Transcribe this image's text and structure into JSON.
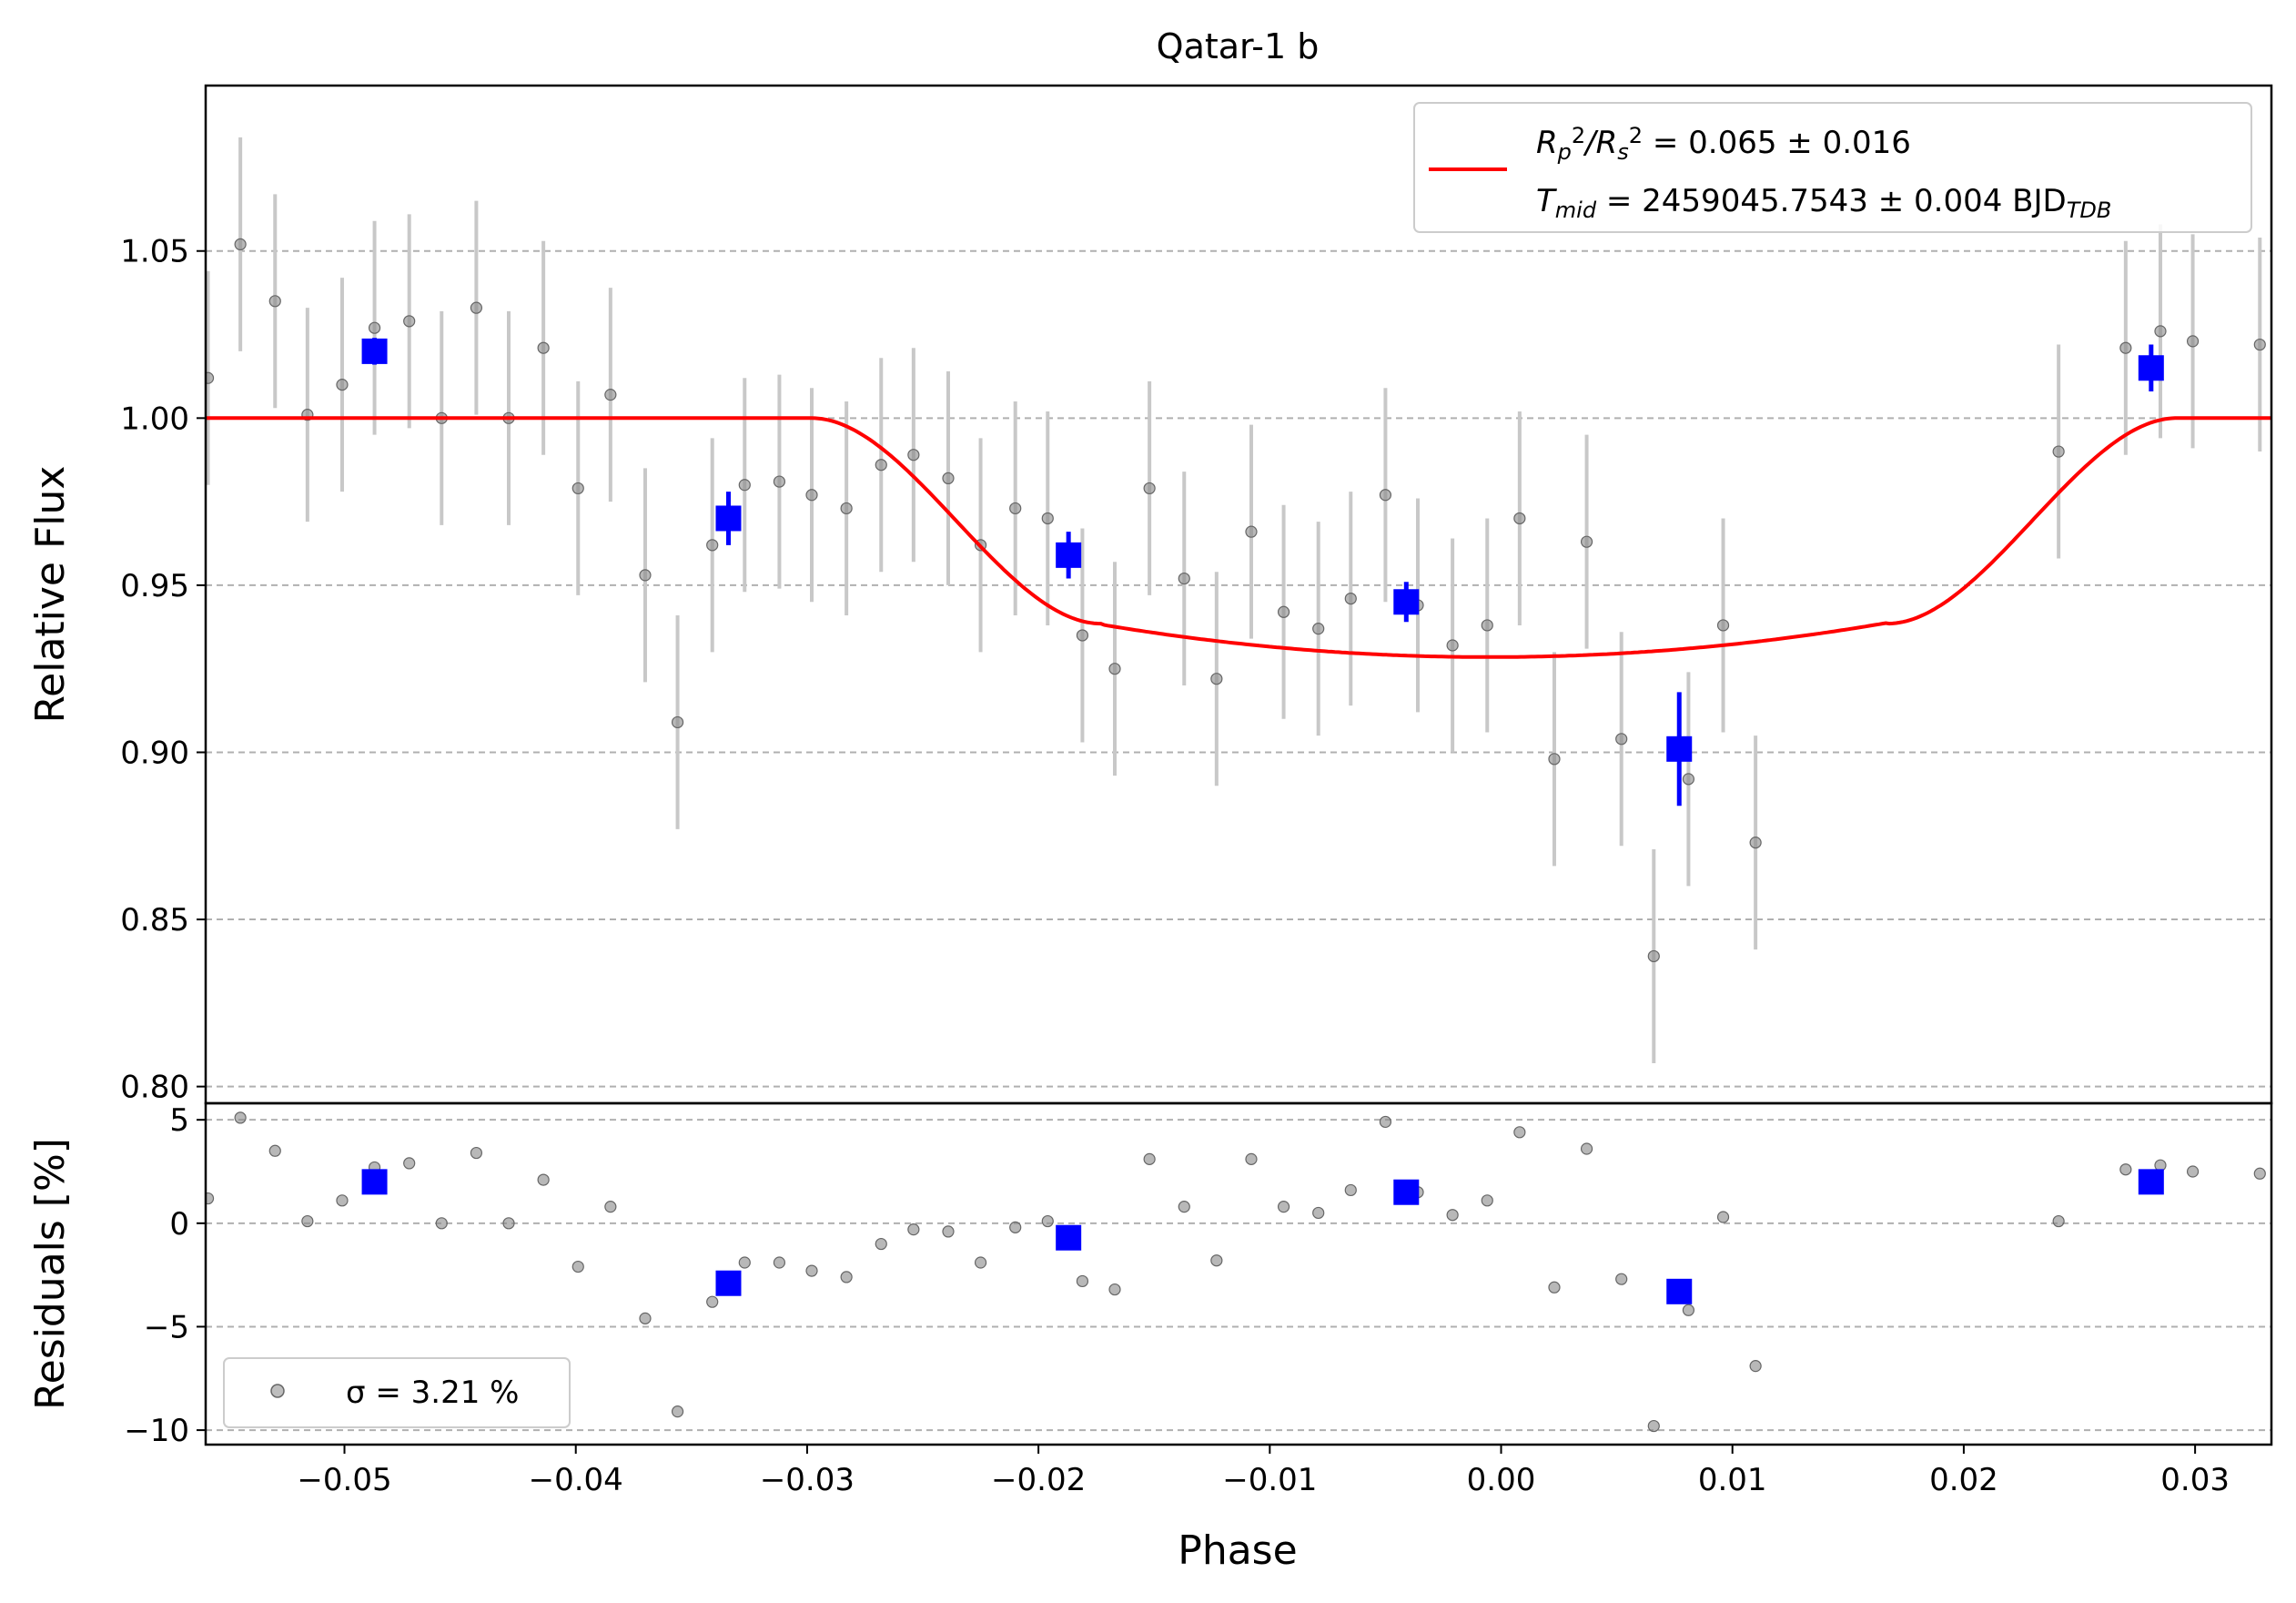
{
  "chart_data": [
    {
      "type": "scatter",
      "panel": "main",
      "title": "Qatar-1 b",
      "xlabel": "",
      "ylabel": "Relative Flux",
      "xlim": [
        -0.056,
        0.0333
      ],
      "ylim": [
        0.795,
        1.0995
      ],
      "grid": "horizontal dashed",
      "y_ticks": [
        0.8,
        0.85,
        0.9,
        0.95,
        1.0,
        1.05
      ],
      "y_tick_labels": [
        "0.80",
        "0.85",
        "0.90",
        "0.95",
        "1.00",
        "1.05"
      ],
      "legend": {
        "placement": "top-right",
        "line1_parts": [
          {
            "t": "R",
            "s": "n"
          },
          {
            "t": "p",
            "s": "sub"
          },
          {
            "t": "2",
            "s": "sup"
          },
          {
            "t": "/R",
            "s": "n"
          },
          {
            "t": "s",
            "s": "sub"
          },
          {
            "t": "2",
            "s": "sup"
          },
          {
            "t": " = 0.065 ± 0.016",
            "s": "n"
          }
        ],
        "line2_parts": [
          {
            "t": "T",
            "s": "n"
          },
          {
            "t": "mid",
            "s": "sub"
          },
          {
            "t": " = 2459045.7543 ± 0.004 BJD",
            "s": "n"
          },
          {
            "t": "TDB",
            "s": "sub"
          }
        ]
      },
      "series": [
        {
          "kind": "raw",
          "color": "#888888",
          "errcolor": "#c8c8c8",
          "x": [
            -0.0559,
            -0.0545,
            -0.053,
            -0.0516,
            -0.0501,
            -0.0487,
            -0.0472,
            -0.0458,
            -0.0443,
            -0.0429,
            -0.0414,
            -0.0399,
            -0.0385,
            -0.037,
            -0.0356,
            -0.0341,
            -0.0327,
            -0.0312,
            -0.0298,
            -0.0283,
            -0.0268,
            -0.0254,
            -0.0239,
            -0.0225,
            -0.021,
            -0.0196,
            -0.0181,
            -0.0167,
            -0.0152,
            -0.0137,
            -0.0123,
            -0.0108,
            -0.0094,
            -0.0079,
            -0.0065,
            -0.005,
            -0.0036,
            -0.0021,
            -0.0006,
            0.0008,
            0.0023,
            0.0037,
            0.0052,
            0.0066,
            0.0081,
            0.0096,
            0.011,
            0.0241,
            0.027,
            0.0285,
            0.0299,
            0.0328
          ],
          "y": [
            1.012,
            1.052,
            1.035,
            1.001,
            1.01,
            1.027,
            1.029,
            1.0,
            1.033,
            1.0,
            1.021,
            0.979,
            1.007,
            0.953,
            0.909,
            0.962,
            0.98,
            0.981,
            0.977,
            0.973,
            0.986,
            0.989,
            0.982,
            0.962,
            0.973,
            0.97,
            0.935,
            0.925,
            0.979,
            0.952,
            0.922,
            0.966,
            0.942,
            0.937,
            0.946,
            0.977,
            0.944,
            0.932,
            0.938,
            0.97,
            0.898,
            0.963,
            0.904,
            0.839,
            0.892,
            0.938,
            0.873,
            0.99,
            1.021,
            1.026,
            1.023,
            1.022
          ],
          "yerr": 0.032
        },
        {
          "kind": "binned",
          "color": "#0000ff",
          "x": [
            -0.0487,
            -0.0334,
            -0.0187,
            -0.0041,
            0.0077,
            0.0281
          ],
          "y": [
            1.02,
            0.97,
            0.959,
            0.945,
            0.901,
            1.015
          ],
          "yerr": [
            0.004,
            0.008,
            0.007,
            0.006,
            0.017,
            0.007
          ]
        },
        {
          "kind": "model",
          "color": "#ff0000",
          "t0": -0.0003,
          "t1": 0.0295,
          "t2": 0.017,
          "depth": 0.0715,
          "tilt": 0.00025
        }
      ]
    },
    {
      "type": "scatter",
      "panel": "residuals",
      "xlabel": "Phase",
      "ylabel": "Residuals [%]",
      "xlim": [
        -0.056,
        0.0333
      ],
      "ylim": [
        -10.7,
        5.8
      ],
      "grid": "horizontal dashed",
      "x_ticks": [
        -0.05,
        -0.04,
        -0.03,
        -0.02,
        -0.01,
        0.0,
        0.01,
        0.02,
        0.03
      ],
      "x_tick_labels": [
        "−0.05",
        "−0.04",
        "−0.03",
        "−0.02",
        "−0.01",
        "0.00",
        "0.01",
        "0.02",
        "0.03"
      ],
      "y_ticks": [
        -10,
        -5,
        0,
        5
      ],
      "y_tick_labels": [
        "−10",
        "−5",
        "0",
        "5"
      ],
      "legend": {
        "placement": "bottom-left",
        "label": "σ = 3.21 %"
      },
      "series": [
        {
          "kind": "raw",
          "color": "#888888",
          "y": [
            1.2,
            5.1,
            3.5,
            0.1,
            1.1,
            2.7,
            2.9,
            0.0,
            3.4,
            0.0,
            2.1,
            -2.1,
            0.8,
            -4.6,
            -9.1,
            -3.8,
            -1.9,
            -1.9,
            -2.3,
            -2.6,
            -1.0,
            -0.3,
            -0.4,
            -1.9,
            -0.2,
            0.1,
            -2.8,
            -3.2,
            3.1,
            0.8,
            -1.8,
            3.1,
            0.8,
            0.5,
            1.6,
            4.9,
            1.5,
            0.4,
            1.1,
            4.4,
            -3.1,
            3.6,
            -2.7,
            -9.8,
            -4.2,
            0.3,
            -6.9,
            0.1,
            2.6,
            2.8,
            2.5,
            2.4
          ]
        },
        {
          "kind": "binned",
          "color": "#0000ff",
          "y": [
            2.0,
            -2.9,
            -0.7,
            1.5,
            -3.3,
            2.0
          ]
        }
      ]
    }
  ]
}
